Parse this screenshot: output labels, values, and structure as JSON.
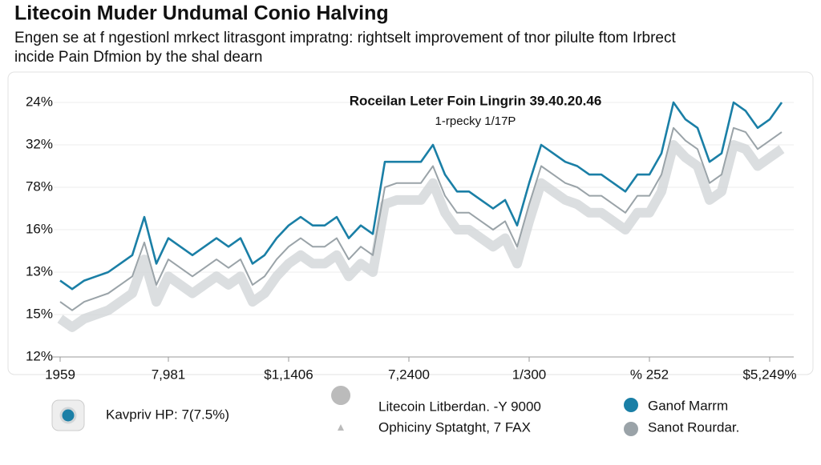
{
  "chart_data": {
    "type": "line",
    "title": "Litecoin Muder Undumal Conio Halving",
    "subtitle": [
      "Engen se at f ngestionl mrkect litrasgont impratng: rightselt improvement of tnor pilulte ftom Irbrect",
      "incide Pain Dfmion by the shal dearn"
    ],
    "annotation": "Roceilan Leter Foin Lingrin 39.40.20.46",
    "annotation_sub": "1-rpecky 1/17P",
    "categories": [
      "1959",
      null,
      null,
      null,
      null,
      null,
      null,
      null,
      null,
      "7,981",
      null,
      null,
      null,
      null,
      null,
      null,
      null,
      null,
      null,
      "$1,1406",
      null,
      null,
      null,
      null,
      null,
      null,
      null,
      null,
      null,
      "7,2400",
      null,
      null,
      null,
      null,
      null,
      null,
      null,
      null,
      null,
      "1/300",
      null,
      null,
      null,
      null,
      null,
      null,
      null,
      null,
      null,
      "% 252",
      null,
      null,
      null,
      null,
      null,
      null,
      null,
      null,
      null,
      "$5,249%",
      null
    ],
    "ylim": [
      0,
      6
    ],
    "yticks": [
      {
        "value": 0,
        "label": "12%"
      },
      {
        "value": 1,
        "label": "15%"
      },
      {
        "value": 2,
        "label": "13%"
      },
      {
        "value": 3,
        "label": "16%"
      },
      {
        "value": 4,
        "label": "78%"
      },
      {
        "value": 5,
        "label": "32%"
      },
      {
        "value": 6,
        "label": "24%"
      }
    ],
    "grid": true,
    "series": [
      {
        "name": "Ganof Marrm",
        "color": "#1a7fa6",
        "values": [
          1.8,
          1.6,
          1.8,
          1.9,
          2.0,
          2.2,
          2.4,
          3.3,
          2.2,
          2.8,
          2.6,
          2.4,
          2.6,
          2.8,
          2.6,
          2.8,
          2.2,
          2.4,
          2.8,
          3.1,
          3.3,
          3.1,
          3.1,
          3.3,
          2.8,
          3.1,
          2.9,
          4.6,
          4.6,
          4.6,
          4.6,
          5.0,
          4.3,
          3.9,
          3.9,
          3.7,
          3.5,
          3.7,
          3.1,
          4.1,
          5.0,
          4.8,
          4.6,
          4.5,
          4.3,
          4.3,
          4.1,
          3.9,
          4.3,
          4.3,
          4.8,
          6.0,
          5.6,
          5.4,
          4.6,
          4.8,
          6.0,
          5.8,
          5.4,
          5.6,
          6.0
        ]
      },
      {
        "name": "Sanot Rourdar.",
        "color": "#9aa3a8",
        "values": [
          1.3,
          1.1,
          1.3,
          1.4,
          1.5,
          1.7,
          1.9,
          2.7,
          1.7,
          2.3,
          2.1,
          1.9,
          2.1,
          2.3,
          2.1,
          2.3,
          1.7,
          1.9,
          2.3,
          2.6,
          2.8,
          2.6,
          2.6,
          2.8,
          2.3,
          2.6,
          2.4,
          4.0,
          4.1,
          4.1,
          4.1,
          4.5,
          3.8,
          3.4,
          3.4,
          3.2,
          3.0,
          3.2,
          2.6,
          3.6,
          4.5,
          4.3,
          4.1,
          4.0,
          3.8,
          3.8,
          3.6,
          3.4,
          3.8,
          3.8,
          4.3,
          5.4,
          5.1,
          4.9,
          4.1,
          4.3,
          5.4,
          5.3,
          4.9,
          5.1,
          5.3
        ]
      },
      {
        "name": "Kavpriv HP: 7(7.5%)",
        "color": "#d2d6d8",
        "values": [
          0.9,
          0.7,
          0.9,
          1.0,
          1.1,
          1.3,
          1.5,
          2.3,
          1.3,
          1.9,
          1.7,
          1.5,
          1.7,
          1.9,
          1.7,
          1.9,
          1.3,
          1.5,
          1.9,
          2.2,
          2.4,
          2.2,
          2.2,
          2.4,
          1.9,
          2.2,
          2.0,
          3.6,
          3.7,
          3.7,
          3.7,
          4.1,
          3.4,
          3.0,
          3.0,
          2.8,
          2.6,
          2.8,
          2.2,
          3.2,
          4.1,
          3.9,
          3.7,
          3.6,
          3.4,
          3.4,
          3.2,
          3.0,
          3.4,
          3.4,
          3.9,
          5.0,
          4.7,
          4.5,
          3.7,
          3.9,
          5.0,
          4.9,
          4.5,
          4.7,
          4.9
        ]
      }
    ],
    "legend_note": [
      "Litecoin Litberdan. -Y 9000",
      "Ophiciny Sptatght, 7 FAX"
    ]
  }
}
